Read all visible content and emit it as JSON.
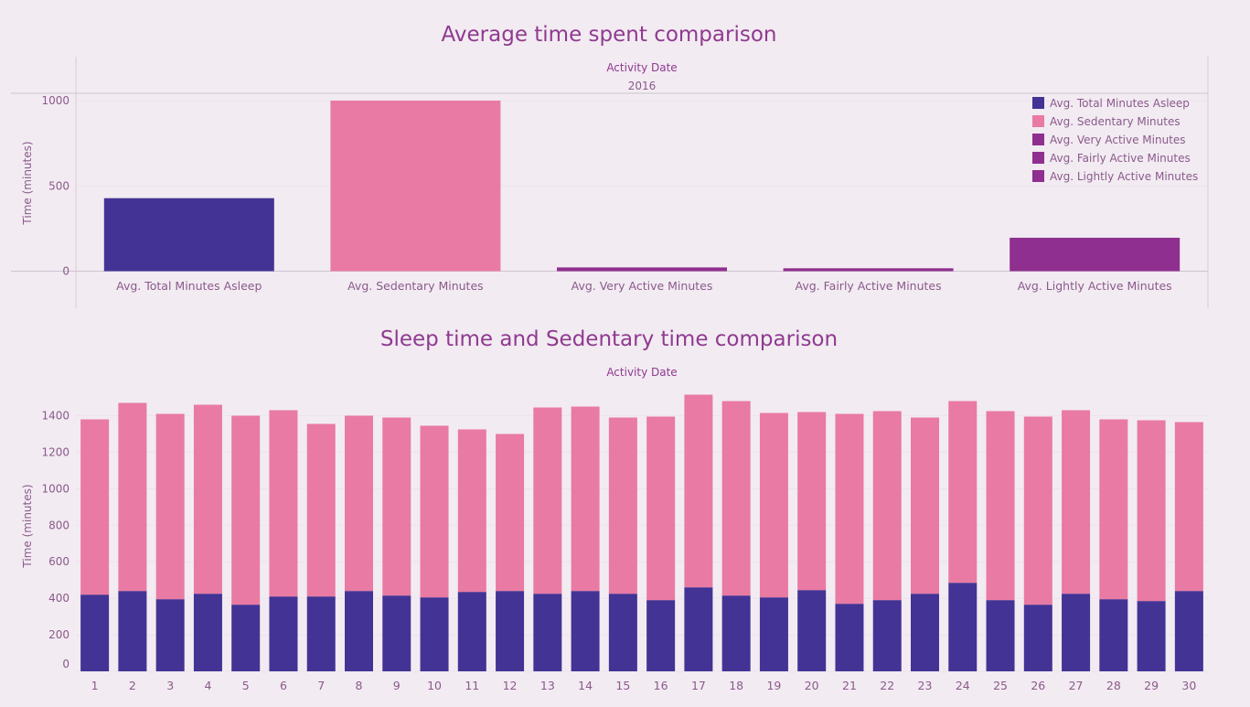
{
  "colors": {
    "background": "#f2ebf2",
    "title": "#8f3a8f",
    "axis_text": "#8f3a8f",
    "tick_text": "#8a5a8a",
    "asleep": "#433394",
    "sedentary": "#e97aa3",
    "very_active": "#8f2f8f",
    "fairly_active": "#8f2f8f",
    "lightly_active": "#8f2f8f"
  },
  "chart_data": [
    {
      "type": "bar",
      "title": "Average time spent comparison",
      "column_header": "Activity Date",
      "column_value": "2016",
      "ylabel": "Time (minutes)",
      "ylim": [
        -100,
        1000
      ],
      "yticks": [
        0,
        500,
        1000
      ],
      "grid": true,
      "legend_position": "top-right",
      "categories": [
        "Avg. Total Minutes Asleep",
        "Avg. Sedentary Minutes",
        "Avg. Very Active Minutes",
        "Avg. Fairly Active Minutes",
        "Avg. Lightly Active Minutes"
      ],
      "values": [
        428,
        1000,
        22,
        17,
        196
      ],
      "legend": [
        {
          "label": "Avg. Total Minutes Asleep",
          "color_key": "asleep"
        },
        {
          "label": "Avg. Sedentary Minutes",
          "color_key": "sedentary"
        },
        {
          "label": "Avg. Very Active Minutes",
          "color_key": "very_active"
        },
        {
          "label": "Avg. Fairly Active Minutes",
          "color_key": "fairly_active"
        },
        {
          "label": "Avg. Lightly Active Minutes",
          "color_key": "lightly_active"
        }
      ]
    },
    {
      "type": "bar",
      "stacked": true,
      "title": "Sleep time and Sedentary time comparison",
      "column_header": "Activity Date",
      "ylabel": "Time (minutes)",
      "ylim": [
        0,
        1500
      ],
      "yticks": [
        0,
        200,
        400,
        600,
        800,
        1000,
        1200,
        1400
      ],
      "grid": true,
      "categories": [
        "1",
        "2",
        "3",
        "4",
        "5",
        "6",
        "7",
        "8",
        "9",
        "10",
        "11",
        "12",
        "13",
        "14",
        "15",
        "16",
        "17",
        "18",
        "19",
        "20",
        "21",
        "22",
        "23",
        "24",
        "25",
        "26",
        "27",
        "28",
        "29",
        "30"
      ],
      "series": [
        {
          "name": "Avg. Total Minutes Asleep",
          "color_key": "asleep",
          "values": [
            420,
            440,
            395,
            425,
            365,
            410,
            410,
            440,
            415,
            405,
            435,
            440,
            425,
            440,
            425,
            390,
            460,
            415,
            405,
            445,
            370,
            390,
            425,
            485,
            390,
            365,
            425,
            395,
            385,
            440
          ]
        },
        {
          "name": "Avg. Sedentary Minutes",
          "color_key": "sedentary",
          "values": [
            960,
            1030,
            1015,
            1035,
            1035,
            1020,
            945,
            960,
            975,
            940,
            890,
            860,
            1020,
            1010,
            965,
            1005,
            1055,
            1065,
            1010,
            975,
            1040,
            1035,
            965,
            995,
            1035,
            1030,
            1005,
            985,
            990,
            925
          ]
        }
      ]
    }
  ]
}
